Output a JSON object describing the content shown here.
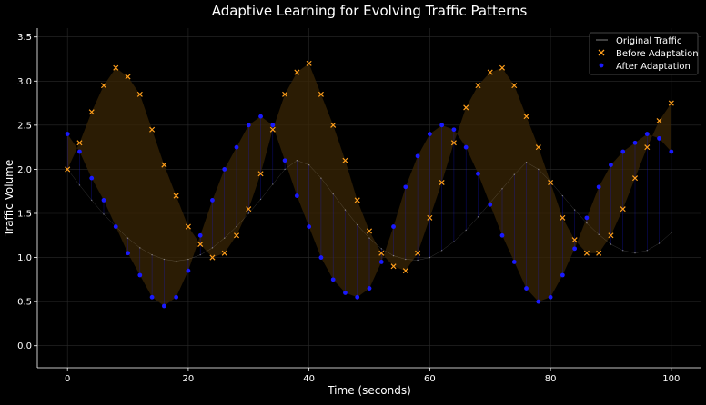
{
  "colors": {
    "background": "#000000",
    "axis": "#ffffff",
    "grid": "#2a2a2a",
    "original": "#ffffff",
    "before": "#ff9f1c",
    "after": "#1a1aff",
    "band": "#3a2506"
  },
  "chart_data": {
    "type": "scatter",
    "title": "Adaptive Learning for Evolving Traffic Patterns",
    "xlabel": "Time (seconds)",
    "ylabel": "Traffic Volume",
    "xlim": [
      -5,
      105
    ],
    "ylim": [
      -0.25,
      3.6
    ],
    "xticks": [
      0,
      20,
      40,
      60,
      80,
      100
    ],
    "yticks": [
      0.0,
      0.5,
      1.0,
      1.5,
      2.0,
      2.5,
      3.0,
      3.5
    ],
    "xtick_labels": [
      "0",
      "20",
      "40",
      "60",
      "80",
      "100"
    ],
    "ytick_labels": [
      "0.0",
      "0.5",
      "1.0",
      "1.5",
      "2.0",
      "2.5",
      "3.0",
      "3.5"
    ],
    "grid": true,
    "legend_position": "top-right",
    "legend": [
      "Original Traffic",
      "Before Adaptation",
      "After Adaptation"
    ],
    "series": [
      {
        "name": "Original Traffic",
        "marker": "line",
        "x": [
          0,
          2,
          4,
          6,
          8,
          10,
          12,
          14,
          16,
          18,
          20,
          22,
          24,
          26,
          28,
          30,
          32,
          34,
          36,
          38,
          40,
          42,
          44,
          46,
          48,
          50,
          52,
          54,
          56,
          58,
          60,
          62,
          64,
          66,
          68,
          70,
          72,
          74,
          76,
          78,
          80,
          82,
          84,
          86,
          88,
          90,
          92,
          94,
          96,
          98,
          100
        ],
        "values": [
          2.0,
          1.82,
          1.65,
          1.49,
          1.35,
          1.22,
          1.11,
          1.03,
          0.98,
          0.96,
          0.98,
          1.03,
          1.11,
          1.22,
          1.35,
          1.5,
          1.66,
          1.83,
          2.0,
          2.1,
          2.05,
          1.9,
          1.72,
          1.54,
          1.37,
          1.22,
          1.1,
          1.02,
          0.98,
          0.97,
          1.0,
          1.08,
          1.18,
          1.31,
          1.46,
          1.62,
          1.78,
          1.94,
          2.08,
          2.0,
          1.86,
          1.7,
          1.54,
          1.39,
          1.26,
          1.15,
          1.08,
          1.05,
          1.08,
          1.16,
          1.28
        ]
      },
      {
        "name": "Before Adaptation",
        "marker": "x",
        "x": [
          0,
          2,
          4,
          6,
          8,
          10,
          12,
          14,
          16,
          18,
          20,
          22,
          24,
          26,
          28,
          30,
          32,
          34,
          36,
          38,
          40,
          42,
          44,
          46,
          48,
          50,
          52,
          54,
          56,
          58,
          60,
          62,
          64,
          66,
          68,
          70,
          72,
          74,
          76,
          78,
          80,
          82,
          84,
          86,
          88,
          90,
          92,
          94,
          96,
          98,
          100
        ],
        "values": [
          2.0,
          2.3,
          2.65,
          2.95,
          3.15,
          3.05,
          2.85,
          2.45,
          2.05,
          1.7,
          1.35,
          1.15,
          1.0,
          1.05,
          1.25,
          1.55,
          1.95,
          2.45,
          2.85,
          3.1,
          3.2,
          2.85,
          2.5,
          2.1,
          1.65,
          1.3,
          1.05,
          0.9,
          0.85,
          1.05,
          1.45,
          1.85,
          2.3,
          2.7,
          2.95,
          3.1,
          3.15,
          2.95,
          2.6,
          2.25,
          1.85,
          1.45,
          1.2,
          1.05,
          1.05,
          1.25,
          1.55,
          1.9,
          2.25,
          2.55,
          2.75
        ]
      },
      {
        "name": "After Adaptation",
        "marker": "dot",
        "x": [
          0,
          2,
          4,
          6,
          8,
          10,
          12,
          14,
          16,
          18,
          20,
          22,
          24,
          26,
          28,
          30,
          32,
          34,
          36,
          38,
          40,
          42,
          44,
          46,
          48,
          50,
          52,
          54,
          56,
          58,
          60,
          62,
          64,
          66,
          68,
          70,
          72,
          74,
          76,
          78,
          80,
          82,
          84,
          86,
          88,
          90,
          92,
          94,
          96,
          98,
          100
        ],
        "values": [
          2.4,
          2.2,
          1.9,
          1.65,
          1.35,
          1.05,
          0.8,
          0.55,
          0.45,
          0.55,
          0.85,
          1.25,
          1.65,
          2.0,
          2.25,
          2.5,
          2.6,
          2.5,
          2.1,
          1.7,
          1.35,
          1.0,
          0.75,
          0.6,
          0.55,
          0.65,
          0.95,
          1.35,
          1.8,
          2.15,
          2.4,
          2.5,
          2.45,
          2.25,
          1.95,
          1.6,
          1.25,
          0.95,
          0.65,
          0.5,
          0.55,
          0.8,
          1.1,
          1.45,
          1.8,
          2.05,
          2.2,
          2.3,
          2.4,
          2.35,
          2.2
        ]
      }
    ]
  }
}
